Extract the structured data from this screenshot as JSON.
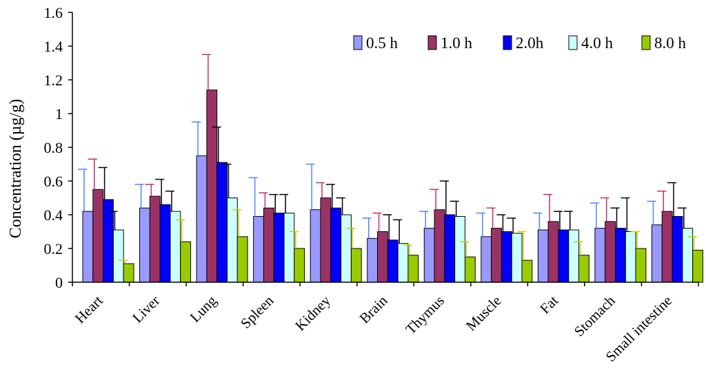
{
  "chart_data": {
    "type": "bar",
    "title": "",
    "xlabel": "",
    "ylabel": "Concentration (µg/g)",
    "ylim": [
      0,
      1.6
    ],
    "yticks": [
      "0",
      "0.2",
      "0.4",
      "0.6",
      "0.8",
      "1",
      "1.2",
      "1.4",
      "1.6"
    ],
    "grid": false,
    "legend_position": "top-right",
    "categories": [
      "Heart",
      "Liver",
      "Lung",
      "Spleen",
      "Kidney",
      "Brain",
      "Thymus",
      "Muscle",
      "Fat",
      "Stomach",
      "Small intestine"
    ],
    "series": [
      {
        "name": "0.5 h",
        "color": "#9999FF",
        "error_color": "#4F81FF",
        "values": [
          0.42,
          0.44,
          0.75,
          0.39,
          0.43,
          0.26,
          0.32,
          0.27,
          0.31,
          0.32,
          0.34
        ],
        "errors": [
          0.25,
          0.14,
          0.2,
          0.23,
          0.27,
          0.12,
          0.1,
          0.14,
          0.1,
          0.15,
          0.14
        ]
      },
      {
        "name": "1.0 h",
        "color": "#993366",
        "error_color": "#C0306A",
        "values": [
          0.55,
          0.51,
          1.14,
          0.44,
          0.5,
          0.3,
          0.43,
          0.32,
          0.36,
          0.36,
          0.42
        ],
        "errors": [
          0.18,
          0.07,
          0.21,
          0.09,
          0.09,
          0.11,
          0.12,
          0.12,
          0.16,
          0.14,
          0.12
        ]
      },
      {
        "name": "2.0h",
        "color": "#0000FF",
        "error_color": "#000000",
        "values": [
          0.49,
          0.46,
          0.71,
          0.41,
          0.44,
          0.25,
          0.4,
          0.3,
          0.31,
          0.32,
          0.39
        ],
        "errors": [
          0.19,
          0.15,
          0.21,
          0.11,
          0.14,
          0.15,
          0.2,
          0.1,
          0.11,
          0.12,
          0.2
        ]
      },
      {
        "name": "4.0 h",
        "color": "#CCFFFF",
        "error_color": "#000000",
        "values": [
          0.31,
          0.42,
          0.5,
          0.41,
          0.4,
          0.23,
          0.39,
          0.29,
          0.31,
          0.3,
          0.32
        ],
        "errors": [
          0.11,
          0.12,
          0.2,
          0.11,
          0.1,
          0.14,
          0.09,
          0.09,
          0.11,
          0.2,
          0.12
        ]
      },
      {
        "name": "8.0 h",
        "color": "#99CC00",
        "error_color": "#CCCC00",
        "values": [
          0.11,
          0.24,
          0.27,
          0.2,
          0.2,
          0.16,
          0.15,
          0.13,
          0.16,
          0.2,
          0.19
        ],
        "errors": [
          0.02,
          0.13,
          0.16,
          0.1,
          0.12,
          0.06,
          0.09,
          0.17,
          0.08,
          0.1,
          0.08
        ]
      }
    ]
  }
}
